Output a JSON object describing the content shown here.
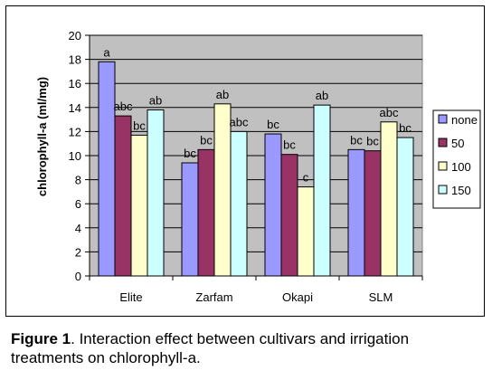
{
  "caption": {
    "label": "Figure 1",
    "text": ". Interaction effect between cultivars and irrigation treatments on chlorophyll-a."
  },
  "chart_data": {
    "type": "bar",
    "title": "",
    "xlabel": "",
    "ylabel": "chlorophyll-a (ml/mg)",
    "ylim": [
      0,
      20
    ],
    "yticks": [
      0,
      2,
      4,
      6,
      8,
      10,
      12,
      14,
      16,
      18,
      20
    ],
    "grid": true,
    "legend_position": "right",
    "categories": [
      "Elite",
      "Zarfam",
      "Okapi",
      "SLM"
    ],
    "series": [
      {
        "name": "none",
        "color": "#9999FF",
        "values": [
          17.8,
          9.4,
          11.8,
          10.5
        ],
        "labels": [
          "a",
          "bc",
          "bc",
          "bc"
        ]
      },
      {
        "name": "50",
        "color": "#993366",
        "values": [
          13.3,
          10.5,
          10.1,
          10.4
        ],
        "labels": [
          "abc",
          "bc",
          "bc",
          "bc"
        ]
      },
      {
        "name": "100",
        "color": "#FFFFCC",
        "values": [
          11.7,
          14.3,
          7.4,
          12.8
        ],
        "labels": [
          "bc",
          "ab",
          "c",
          "abc"
        ]
      },
      {
        "name": "150",
        "color": "#CCFFFF",
        "values": [
          13.8,
          12.0,
          14.2,
          11.5
        ],
        "labels": [
          "ab",
          "abc",
          "ab",
          "bc"
        ]
      }
    ],
    "plot_background": "#C0C0C0"
  }
}
